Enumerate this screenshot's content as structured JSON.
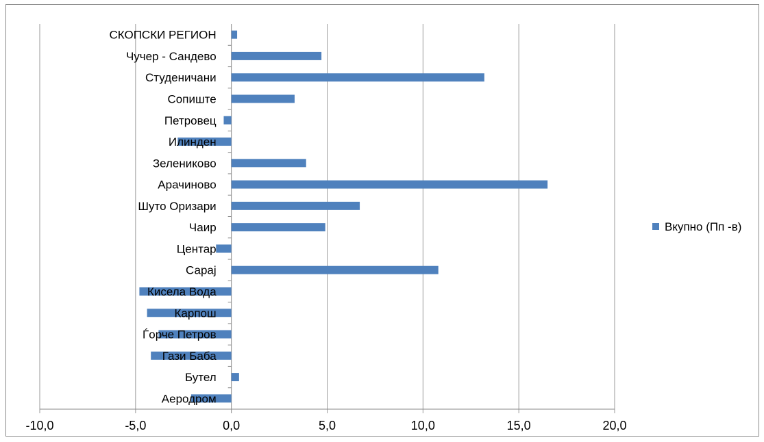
{
  "chart_data": {
    "type": "bar",
    "orientation": "horizontal",
    "title": "",
    "xlabel": "",
    "ylabel": "",
    "xlim": [
      -10,
      20
    ],
    "x_ticks": [
      -10,
      -5,
      0,
      5,
      10,
      15,
      20
    ],
    "x_tick_labels": [
      "-10,0",
      "-5,0",
      "0,0",
      "5,0",
      "10,0",
      "15,0",
      "20,0"
    ],
    "grid": true,
    "legend_position": "right",
    "categories": [
      "СКОПСКИ РЕГИОН",
      "Чучер - Сандево",
      "Студеничани",
      "Сопиште",
      "Петровец",
      "Илинден",
      "Зелениково",
      "Арачиново",
      "Шуто Оризари",
      "Чаир",
      "Центар",
      "Сарај",
      "Кисела Вода",
      "Карпош",
      "Ѓорче Петров",
      "Гази Баба",
      "Бутел",
      "Аеродром"
    ],
    "series": [
      {
        "name": "Вкупно (Пп -в)",
        "color": "#4f81bd",
        "values": [
          0.3,
          4.7,
          13.2,
          3.3,
          -0.4,
          -2.8,
          3.9,
          16.5,
          6.7,
          4.9,
          -0.8,
          10.8,
          -4.8,
          -4.4,
          -3.8,
          -4.2,
          0.4,
          -2.1
        ]
      }
    ]
  }
}
